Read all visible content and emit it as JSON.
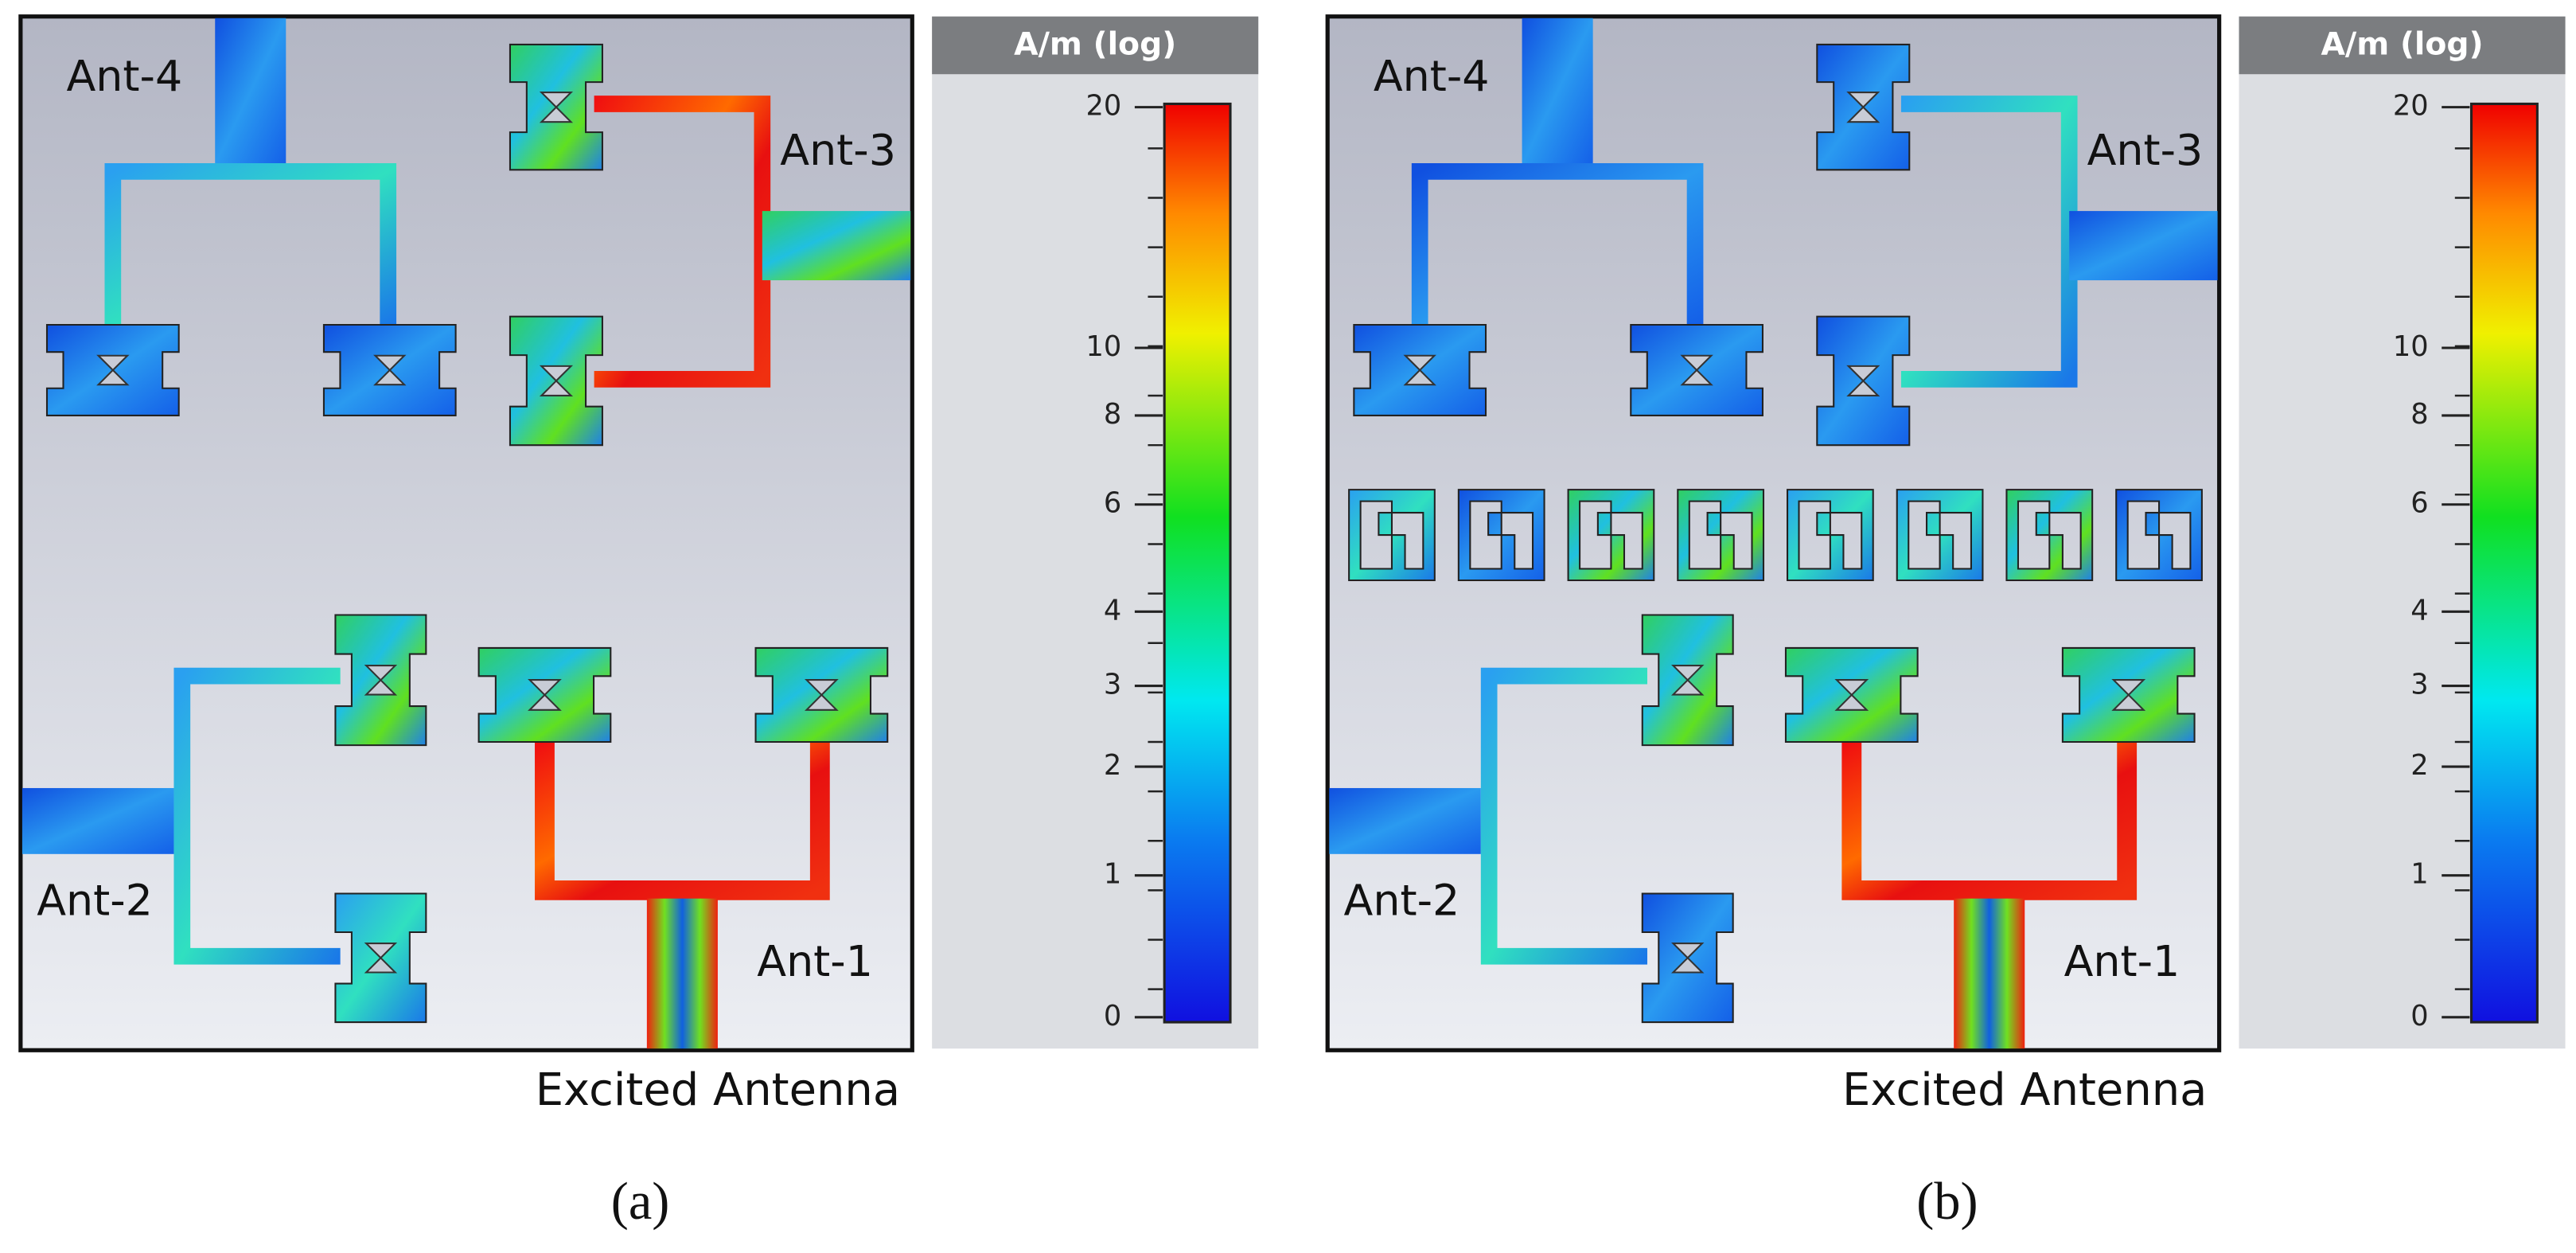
{
  "panels": [
    {
      "antenna_labels": [
        "Ant-4",
        "Ant-3",
        "Ant-2",
        "Ant-1"
      ],
      "caption": "Excited Antenna",
      "colorbar": {
        "title": "A/m (log)",
        "ticks": [
          "20",
          "10",
          "8",
          "6",
          "4",
          "3",
          "2",
          "1",
          "0"
        ]
      },
      "tag": "(a)"
    },
    {
      "antenna_labels": [
        "Ant-4",
        "Ant-3",
        "Ant-2",
        "Ant-1"
      ],
      "caption": "Excited Antenna",
      "colorbar": {
        "title": "A/m (log)",
        "ticks": [
          "20",
          "10",
          "8",
          "6",
          "4",
          "3",
          "2",
          "1",
          "0"
        ]
      },
      "tag": "(b)"
    }
  ]
}
